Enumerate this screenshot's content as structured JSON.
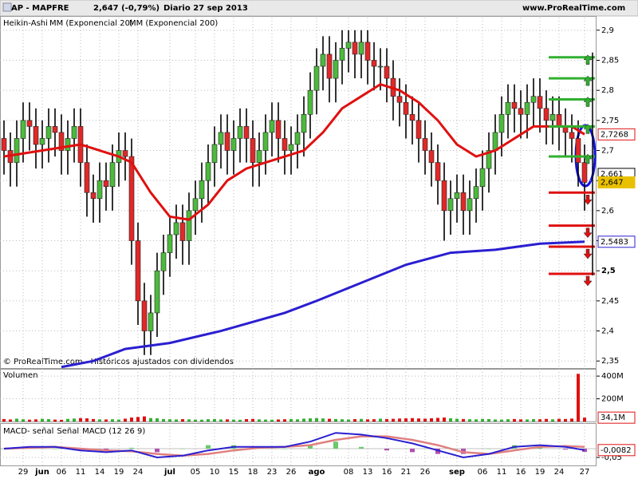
{
  "header": {
    "symbol": "MAP - MAPFRE",
    "quote": "2,647 (-0,79%)",
    "period": "Diario 27 sep 2013",
    "site": "www.ProRealTime.com",
    "footer": "© ProRealTime.com - Históricos ajustados con dividendos"
  },
  "chart_data": [
    {
      "type": "candlestick",
      "name": "Heikin-Ashi",
      "open": [
        2.72,
        2.7,
        2.68,
        2.72,
        2.75,
        2.74,
        2.71,
        2.72,
        2.74,
        2.73,
        2.7,
        2.72,
        2.74,
        2.68,
        2.63,
        2.62,
        2.65,
        2.64,
        2.68,
        2.7,
        2.69,
        2.55,
        2.45,
        2.4,
        2.43,
        2.5,
        2.53,
        2.56,
        2.58,
        2.55,
        2.6,
        2.62,
        2.65,
        2.68,
        2.71,
        2.73,
        2.7,
        2.72,
        2.74,
        2.72,
        2.68,
        2.7,
        2.73,
        2.75,
        2.72,
        2.7,
        2.71,
        2.73,
        2.76,
        2.8,
        2.84,
        2.86,
        2.82,
        2.85,
        2.87,
        2.88,
        2.86,
        2.88,
        2.85,
        2.84,
        2.84,
        2.82,
        2.79,
        2.78,
        2.76,
        2.75,
        2.72,
        2.7,
        2.68,
        2.65,
        2.6,
        2.62,
        2.63,
        2.6,
        2.62,
        2.64,
        2.67,
        2.7,
        2.73,
        2.76,
        2.78,
        2.77,
        2.76,
        2.78,
        2.79,
        2.77,
        2.75,
        2.76,
        2.74,
        2.73,
        2.72,
        2.68
      ],
      "high": [
        2.75,
        2.73,
        2.75,
        2.78,
        2.78,
        2.77,
        2.75,
        2.77,
        2.77,
        2.76,
        2.75,
        2.77,
        2.77,
        2.71,
        2.66,
        2.68,
        2.68,
        2.71,
        2.73,
        2.73,
        2.72,
        2.58,
        2.48,
        2.46,
        2.53,
        2.56,
        2.59,
        2.61,
        2.61,
        2.63,
        2.65,
        2.68,
        2.71,
        2.74,
        2.76,
        2.76,
        2.75,
        2.77,
        2.77,
        2.75,
        2.73,
        2.76,
        2.78,
        2.78,
        2.75,
        2.74,
        2.76,
        2.79,
        2.83,
        2.87,
        2.89,
        2.89,
        2.88,
        2.9,
        2.9,
        2.9,
        2.9,
        2.9,
        2.88,
        2.87,
        2.87,
        2.85,
        2.82,
        2.81,
        2.79,
        2.78,
        2.75,
        2.73,
        2.71,
        2.68,
        2.65,
        2.66,
        2.66,
        2.65,
        2.67,
        2.7,
        2.73,
        2.76,
        2.79,
        2.81,
        2.81,
        2.8,
        2.81,
        2.82,
        2.82,
        2.8,
        2.79,
        2.79,
        2.77,
        2.76,
        2.75,
        2.71
      ],
      "low": [
        2.66,
        2.64,
        2.64,
        2.68,
        2.7,
        2.67,
        2.67,
        2.68,
        2.69,
        2.66,
        2.66,
        2.68,
        2.64,
        2.59,
        2.58,
        2.58,
        2.6,
        2.6,
        2.64,
        2.65,
        2.51,
        2.41,
        2.36,
        2.36,
        2.39,
        2.46,
        2.49,
        2.52,
        2.51,
        2.51,
        2.56,
        2.58,
        2.61,
        2.64,
        2.67,
        2.66,
        2.66,
        2.68,
        2.68,
        2.64,
        2.64,
        2.66,
        2.69,
        2.68,
        2.66,
        2.66,
        2.67,
        2.69,
        2.72,
        2.76,
        2.8,
        2.78,
        2.78,
        2.81,
        2.83,
        2.82,
        2.82,
        2.81,
        2.8,
        2.8,
        2.78,
        2.75,
        2.74,
        2.72,
        2.71,
        2.68,
        2.66,
        2.64,
        2.61,
        2.55,
        2.56,
        2.58,
        2.56,
        2.56,
        2.58,
        2.6,
        2.63,
        2.66,
        2.69,
        2.72,
        2.73,
        2.72,
        2.72,
        2.74,
        2.73,
        2.71,
        2.71,
        2.7,
        2.69,
        2.68,
        2.64,
        2.6
      ],
      "close": [
        2.7,
        2.68,
        2.72,
        2.75,
        2.74,
        2.71,
        2.72,
        2.74,
        2.73,
        2.7,
        2.72,
        2.74,
        2.68,
        2.63,
        2.62,
        2.65,
        2.64,
        2.68,
        2.7,
        2.69,
        2.55,
        2.45,
        2.4,
        2.43,
        2.5,
        2.53,
        2.56,
        2.58,
        2.55,
        2.6,
        2.62,
        2.65,
        2.68,
        2.71,
        2.73,
        2.7,
        2.72,
        2.74,
        2.72,
        2.68,
        2.7,
        2.73,
        2.75,
        2.72,
        2.7,
        2.71,
        2.73,
        2.76,
        2.8,
        2.84,
        2.86,
        2.82,
        2.85,
        2.87,
        2.88,
        2.86,
        2.88,
        2.85,
        2.84,
        2.84,
        2.82,
        2.79,
        2.78,
        2.76,
        2.75,
        2.72,
        2.7,
        2.68,
        2.65,
        2.6,
        2.62,
        2.63,
        2.6,
        2.62,
        2.64,
        2.67,
        2.7,
        2.73,
        2.76,
        2.78,
        2.77,
        2.76,
        2.78,
        2.79,
        2.77,
        2.75,
        2.76,
        2.74,
        2.73,
        2.72,
        2.68,
        2.647
      ],
      "series": [
        {
          "name": "MM (Exponencial 20)",
          "color": "#e01010",
          "x": [
            0,
            6,
            12,
            18,
            20,
            23,
            26,
            29,
            32,
            35,
            38,
            41,
            44,
            47,
            50,
            53,
            56,
            59,
            62,
            65,
            68,
            71,
            74,
            77,
            80,
            83,
            86,
            89,
            91
          ],
          "values": [
            2.69,
            2.7,
            2.71,
            2.69,
            2.68,
            2.63,
            2.59,
            2.585,
            2.61,
            2.65,
            2.67,
            2.68,
            2.69,
            2.7,
            2.73,
            2.77,
            2.79,
            2.81,
            2.8,
            2.78,
            2.75,
            2.71,
            2.69,
            2.7,
            2.72,
            2.74,
            2.74,
            2.74,
            2.7268
          ]
        },
        {
          "name": "MM (Exponencial 200)",
          "color": "#2a1fd0",
          "x": [
            9,
            14,
            19,
            26,
            34,
            44,
            49,
            56,
            63,
            70,
            77,
            84,
            91
          ],
          "values": [
            2.34,
            2.35,
            2.37,
            2.38,
            2.4,
            2.43,
            2.45,
            2.48,
            2.51,
            2.53,
            2.535,
            2.545,
            2.5483
          ]
        }
      ],
      "price_labels": [
        {
          "value": 2.7268,
          "label": "2,7268",
          "color": "#e01010"
        },
        {
          "value": 2.661,
          "label": "2,661",
          "color": "#000000"
        },
        {
          "value": 2.647,
          "label": "2,647",
          "color": "#e8c000"
        },
        {
          "value": 2.5483,
          "label": "2,5483",
          "color": "#2a1fd0"
        }
      ],
      "green_levels": [
        2.855,
        2.82,
        2.785,
        2.74,
        2.69
      ],
      "red_levels": [
        2.63,
        2.575,
        2.54,
        2.495
      ],
      "ylim": [
        2.337,
        2.921
      ],
      "yticks": [
        {
          "value": 2.35,
          "label": "2,35"
        },
        {
          "value": 2.4,
          "label": "2,4"
        },
        {
          "value": 2.45,
          "label": "2,45"
        },
        {
          "value": 2.5,
          "label": "2,5"
        },
        {
          "value": 2.55,
          "label": "2,55"
        },
        {
          "value": 2.6,
          "label": "2,6"
        },
        {
          "value": 2.65,
          "label": "2,65"
        },
        {
          "value": 2.7,
          "label": "2,7"
        },
        {
          "value": 2.75,
          "label": "2,75"
        },
        {
          "value": 2.8,
          "label": "2,8"
        },
        {
          "value": 2.85,
          "label": "2,85"
        },
        {
          "value": 2.9,
          "label": "2,9"
        }
      ],
      "xticks": [
        {
          "value": 3,
          "label": "29"
        },
        {
          "value": 6,
          "label": "jun"
        },
        {
          "value": 9,
          "label": "06"
        },
        {
          "value": 12,
          "label": "11"
        },
        {
          "value": 15,
          "label": "14"
        },
        {
          "value": 18,
          "label": "19"
        },
        {
          "value": 21,
          "label": "24"
        },
        {
          "value": 26,
          "label": "jul"
        },
        {
          "value": 30,
          "label": "05"
        },
        {
          "value": 33,
          "label": "10"
        },
        {
          "value": 36,
          "label": "15"
        },
        {
          "value": 39,
          "label": "18"
        },
        {
          "value": 42,
          "label": "23"
        },
        {
          "value": 45,
          "label": "26"
        },
        {
          "value": 49,
          "label": "ago"
        },
        {
          "value": 54,
          "label": "08"
        },
        {
          "value": 57,
          "label": "13"
        },
        {
          "value": 60,
          "label": "16"
        },
        {
          "value": 63,
          "label": "21"
        },
        {
          "value": 66,
          "label": "26"
        },
        {
          "value": 71,
          "label": "sep"
        },
        {
          "value": 75,
          "label": "06"
        },
        {
          "value": 78,
          "label": "11"
        },
        {
          "value": 81,
          "label": "16"
        },
        {
          "value": 84,
          "label": "19"
        },
        {
          "value": 87,
          "label": "24"
        },
        {
          "value": 91,
          "label": "27"
        }
      ],
      "grid": true
    },
    {
      "type": "volume",
      "title": "Volumen",
      "values": [
        22,
        18,
        25,
        20,
        16,
        19,
        24,
        21,
        17,
        15,
        23,
        26,
        30,
        28,
        22,
        19,
        18,
        20,
        17,
        25,
        35,
        40,
        45,
        30,
        28,
        22,
        20,
        18,
        21,
        19,
        17,
        16,
        20,
        22,
        18,
        19,
        17,
        15,
        21,
        23,
        19,
        17,
        16,
        18,
        20,
        22,
        19,
        25,
        28,
        30,
        27,
        24,
        22,
        20,
        18,
        21,
        23,
        19,
        20,
        25,
        22,
        24,
        26,
        28,
        30,
        27,
        25,
        29,
        32,
        35,
        28,
        24,
        22,
        20,
        19,
        23,
        21,
        18,
        17,
        20,
        22,
        19,
        18,
        21,
        20,
        23,
        19,
        24,
        22,
        26,
        420,
        34.1
      ],
      "last_label": {
        "value": 34.1,
        "label": "34,1M"
      },
      "ylim": [
        0,
        464
      ],
      "yticks": [
        {
          "value": 200,
          "label": "200M"
        },
        {
          "value": 400,
          "label": "400M"
        }
      ]
    },
    {
      "type": "macd",
      "x": [
        0,
        4,
        8,
        12,
        16,
        20,
        24,
        28,
        32,
        36,
        40,
        44,
        48,
        52,
        56,
        60,
        64,
        68,
        72,
        76,
        80,
        84,
        88,
        91
      ],
      "series": [
        {
          "name": "MACD- señal",
          "color": "#c0507a",
          "values": [
            0,
            0.005,
            0,
            -0.01,
            -0.01,
            0.005,
            -0.02,
            0,
            0.02,
            0.02,
            0.005,
            0,
            0.02,
            0.04,
            0.01,
            -0.01,
            -0.02,
            -0.03,
            -0.03,
            0,
            0.02,
            0.01,
            -0.005,
            -0.0182
          ]
        },
        {
          "name": "Señal",
          "color": "#e08080",
          "values": [
            0,
            0.005,
            0.01,
            0,
            -0.01,
            -0.015,
            -0.03,
            -0.04,
            -0.03,
            -0.01,
            0.005,
            0.01,
            0.02,
            0.05,
            0.07,
            0.07,
            0.05,
            0.02,
            -0.02,
            -0.03,
            -0.01,
            0.01,
            0.015,
            0.01
          ]
        },
        {
          "name": "MACD (12 26 9)",
          "color": "#2a1fd0",
          "values": [
            0,
            0.01,
            0.01,
            -0.01,
            -0.02,
            -0.01,
            -0.05,
            -0.04,
            -0.01,
            0.01,
            0.01,
            0.01,
            0.04,
            0.09,
            0.08,
            0.06,
            0.03,
            -0.01,
            -0.05,
            -0.03,
            0.01,
            0.02,
            0.01,
            -0.0082
          ]
        }
      ],
      "last_label": {
        "value": -0.0082,
        "label": "-0,0082"
      },
      "ylim": [
        -0.0955,
        0.1455
      ],
      "yticks": [
        {
          "value": -0.05,
          "label": "-0,05"
        }
      ]
    }
  ]
}
